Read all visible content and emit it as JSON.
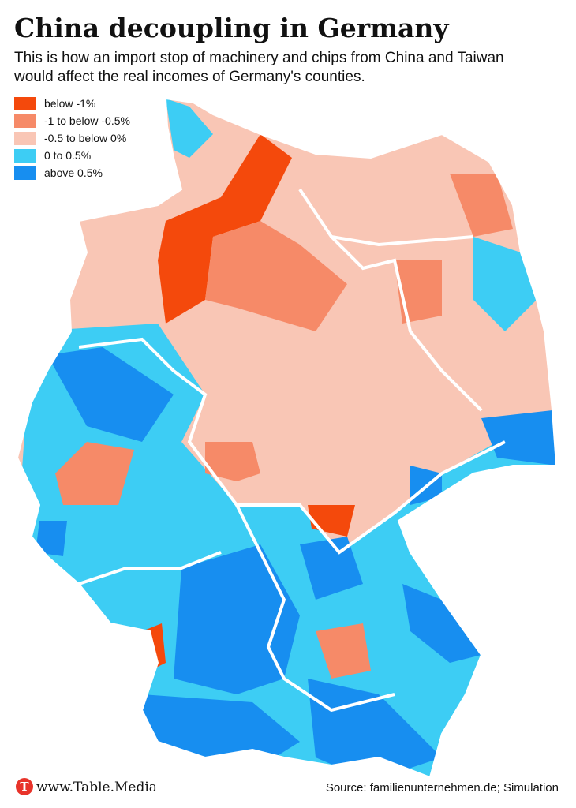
{
  "header": {
    "title": "China decoupling in Germany",
    "subtitle": "This is how an import stop of machinery and chips from China and Taiwan would affect the real incomes of Germany's counties."
  },
  "legend": {
    "items": [
      {
        "label": "below -1%",
        "color": "#f4490c"
      },
      {
        "label": "-1 to below -0.5%",
        "color": "#f68a68"
      },
      {
        "label": "-0.5 to below 0%",
        "color": "#f9c6b5"
      },
      {
        "label": "0 to 0.5%",
        "color": "#3dcdf4"
      },
      {
        "label": "above 0.5%",
        "color": "#178ef0"
      }
    ]
  },
  "footer": {
    "brand": "www.Table.Media",
    "source": "Source: familienunternehmen.de; Simulation"
  }
}
